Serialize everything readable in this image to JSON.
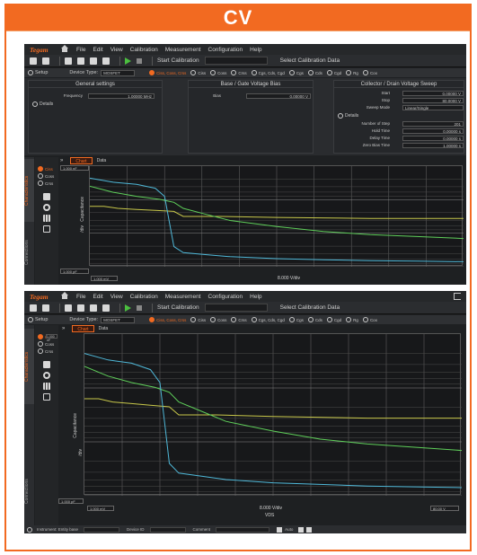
{
  "banner": {
    "title": "CV"
  },
  "app": {
    "logo": "Tegam",
    "menu": [
      "File",
      "Edit",
      "View",
      "Calibration",
      "Measurement",
      "Configuration",
      "Help"
    ],
    "toolbar": {
      "start_label": "Start Calibration",
      "select_label": "Select Calibration Data"
    },
    "setup": {
      "setup_label": "Setup",
      "device_type_label": "Device Type:",
      "device_type_value": "MOSFET",
      "modes": [
        "Ciss, Coss, Crss",
        "Ciss",
        "Coss",
        "Crss",
        "Cgs, Cds, Cgd",
        "Cgs",
        "Cds",
        "Cgd",
        "Rg",
        "Cox"
      ],
      "selected_mode": "Ciss, Coss, Crss"
    },
    "panels": {
      "general": {
        "title": "General settings",
        "frequency_label": "Frequency",
        "frequency_value": "1.00000 MHz",
        "details": "Details"
      },
      "gate": {
        "title": "Base / Gate Voltage Bias",
        "bias_label": "Bias",
        "bias_value": "0.00000 V"
      },
      "drain": {
        "title": "Collector / Drain Voltage Sweep",
        "fields": [
          {
            "label": "Start",
            "value": "0.00000 V"
          },
          {
            "label": "Stop",
            "value": "80.0000 V"
          },
          {
            "label": "Sweep Mode",
            "value": "Linear/Single"
          }
        ],
        "details": "Details",
        "detail_fields": [
          {
            "label": "Number of Step",
            "value": "201"
          },
          {
            "label": "Hold Time",
            "value": "0.00000 s"
          },
          {
            "label": "Delay Time",
            "value": "0.00000 s"
          },
          {
            "label": "Zero Bias Time",
            "value": "1.00000 s"
          }
        ]
      }
    },
    "side_tabs": {
      "characteristics": "Characteristics",
      "connections": "Connections"
    },
    "chart_tabs": {
      "chart": "Chart",
      "data": "Data"
    },
    "trace_selector": {
      "options": [
        "Ciss",
        "Coss",
        "Crss"
      ],
      "selected": "Ciss",
      "scale_value": "1.000 nF"
    },
    "axes": {
      "ylabel": "Capacitance",
      "y_unit": "/div",
      "y_top": "1.000 nF",
      "y_bottom": "1.000 pF",
      "x_left": "1.000 mV",
      "x_scale": "8.000 V/div",
      "x_right": "80.00 V",
      "xlabel": "VDS"
    },
    "status": {
      "instrument_label": "Instrument: Entity base",
      "device_label": "Device ID",
      "comment_label": "Comment",
      "save_label": "Auto"
    }
  },
  "chart_data": {
    "type": "line",
    "x_unit": "V",
    "ylim_display": "log",
    "xlim": [
      0,
      80
    ],
    "series": [
      {
        "color": "#c8c84a",
        "x": [
          0,
          3,
          6,
          10,
          14,
          18,
          20,
          28,
          40,
          60,
          80
        ],
        "y": [
          0.6,
          0.6,
          0.58,
          0.57,
          0.56,
          0.55,
          0.5,
          0.5,
          0.49,
          0.48,
          0.48
        ]
      },
      {
        "color": "#5fcf5a",
        "x": [
          0,
          5,
          10,
          15,
          18,
          20,
          25,
          30,
          40,
          50,
          60,
          70,
          80
        ],
        "y": [
          0.8,
          0.74,
          0.7,
          0.67,
          0.64,
          0.58,
          0.52,
          0.46,
          0.4,
          0.35,
          0.32,
          0.3,
          0.28
        ]
      },
      {
        "color": "#4fb8d8",
        "x": [
          0,
          5,
          10,
          14,
          16,
          17,
          18,
          20,
          25,
          30,
          40,
          50,
          60,
          70,
          80
        ],
        "y": [
          0.88,
          0.84,
          0.82,
          0.78,
          0.7,
          0.45,
          0.2,
          0.14,
          0.12,
          0.1,
          0.08,
          0.07,
          0.06,
          0.055,
          0.05
        ]
      }
    ]
  }
}
